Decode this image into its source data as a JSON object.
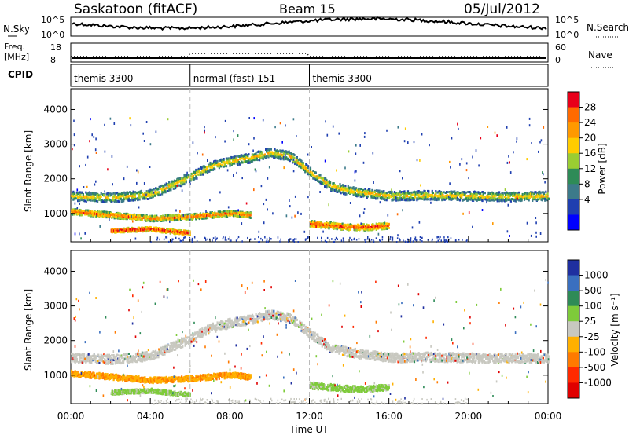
{
  "header": {
    "station": "Saskatoon (fitACF)",
    "beam": "Beam 15",
    "date": "05/Jul/2012"
  },
  "top_panels": {
    "nsky_label": "N.Sky",
    "nsky_ticks": [
      "10^5",
      "10^0"
    ],
    "nsearch_label": "N.Search",
    "nsearch_ticks": [
      "10^5",
      "10^0"
    ],
    "freq_label": "Freq.",
    "freq_unit": "[MHz]",
    "freq_ticks": [
      "18",
      "8"
    ],
    "nave_label": "Nave",
    "nave_ticks": [
      "60",
      "0"
    ],
    "cpid_label": "CPID",
    "cpid_segments": [
      {
        "name": "themis 3300",
        "start_hour": 0,
        "end_hour": 6
      },
      {
        "name": "normal (fast) 151",
        "start_hour": 6,
        "end_hour": 12
      },
      {
        "name": "themis 3300",
        "start_hour": 12,
        "end_hour": 24
      }
    ]
  },
  "axes": {
    "x_ticks": [
      "00:00",
      "04:00",
      "08:00",
      "12:00",
      "16:00",
      "20:00",
      "00:00"
    ],
    "x_label": "Time UT",
    "y_label": "Slant Range [km]",
    "y_ticks": [
      "4000",
      "3000",
      "2000",
      "1000"
    ]
  },
  "power_colorbar": {
    "label": "Power [dB]",
    "ticks": [
      "28",
      "24",
      "20",
      "16",
      "12",
      "8",
      "4"
    ],
    "colors": [
      "#e8001a",
      "#ff6a00",
      "#ff9900",
      "#ffcc00",
      "#9acd32",
      "#2e8b57",
      "#3c7a8a",
      "#1f3fb0",
      "#0000ff"
    ]
  },
  "velocity_colorbar": {
    "label": "Velocity [m s⁻¹]",
    "ticks": [
      "1000",
      "500",
      "100",
      "25",
      "-25",
      "-100",
      "-500",
      "-1000"
    ],
    "colors": [
      "#1f2fa0",
      "#3a6fbf",
      "#2e8b57",
      "#7ecb3a",
      "#c8c8c0",
      "#ffb000",
      "#ff7a00",
      "#ff2a00",
      "#e00000"
    ]
  },
  "chart_data": {
    "type": "heatmap",
    "title": "Saskatoon (fitACF)  Beam 15  05/Jul/2012",
    "xlabel": "Time UT",
    "ylabel": "Slant Range [km]",
    "xlim_hours": [
      0,
      24
    ],
    "ylim_km": [
      180,
      4600
    ],
    "cpid_change_hours": [
      6,
      12
    ],
    "power_echo_bands": [
      {
        "name": "main",
        "points_hour_km": [
          [
            0,
            1500
          ],
          [
            2,
            1450
          ],
          [
            4,
            1550
          ],
          [
            5,
            1800
          ],
          [
            6,
            2050
          ],
          [
            7,
            2350
          ],
          [
            8,
            2500
          ],
          [
            9,
            2600
          ],
          [
            10,
            2750
          ],
          [
            11,
            2650
          ],
          [
            12,
            2200
          ],
          [
            13,
            1800
          ],
          [
            14,
            1650
          ],
          [
            16,
            1500
          ],
          [
            18,
            1520
          ],
          [
            20,
            1500
          ],
          [
            22,
            1480
          ],
          [
            24,
            1500
          ]
        ],
        "width_km": 260,
        "power_db": 14
      },
      {
        "name": "lower",
        "points_hour_km": [
          [
            0,
            1050
          ],
          [
            2,
            950
          ],
          [
            4,
            850
          ],
          [
            6,
            900
          ],
          [
            7,
            950
          ],
          [
            8,
            1000
          ],
          [
            9,
            950
          ]
        ],
        "width_km": 160,
        "power_db": 20
      },
      {
        "name": "near",
        "points_hour_km": [
          [
            2,
            500
          ],
          [
            4,
            550
          ],
          [
            5,
            480
          ],
          [
            6,
            430
          ]
        ],
        "width_km": 120,
        "power_db": 24
      },
      {
        "name": "afternoon",
        "points_hour_km": [
          [
            12,
            700
          ],
          [
            13,
            650
          ],
          [
            14,
            600
          ],
          [
            15,
            600
          ],
          [
            16,
            650
          ]
        ],
        "width_km": 180,
        "power_db": 22
      }
    ],
    "velocity_echo_bands": [
      {
        "name": "main",
        "velocity_ms": 0
      },
      {
        "name": "lower",
        "velocity_ms": -150
      },
      {
        "name": "near",
        "velocity_ms": 80
      }
    ]
  }
}
